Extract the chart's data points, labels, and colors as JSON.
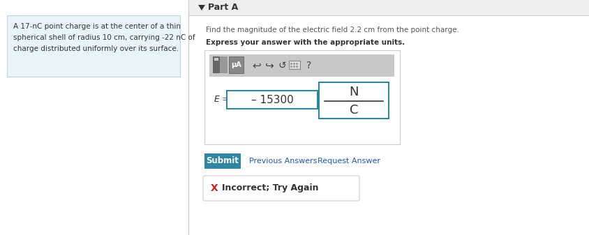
{
  "bg_color": "#ffffff",
  "left_panel_bg": "#e8f4f8",
  "left_panel_border": "#b8d8e8",
  "right_panel_bg": "#f0f0f0",
  "left_text_line1": "A 17-nC point charge is at the center of a thin",
  "left_text_line2": "spherical shell of radius 10 cm, carrying -22 nC of",
  "left_text_line3": "charge distributed uniformly over its surface.",
  "part_label": "Part A",
  "question_line1": "Find the magnitude of the electric field 2.2 cm from the point charge.",
  "question_line2": "Express your answer with the appropriate units.",
  "answer_value": "– 15300",
  "unit_numerator": "N",
  "unit_denominator": "C",
  "submit_bg": "#2e86a0",
  "submit_text": "Submit",
  "submit_text_color": "#ffffff",
  "prev_answers_text": "Previous Answers",
  "request_answer_text": "Request Answer",
  "link_color": "#2255bb",
  "incorrect_text": "Incorrect; Try Again",
  "incorrect_box_bg": "#ffffff",
  "incorrect_box_border": "#cccccc",
  "x_mark": "X",
  "x_color": "#cc2222",
  "toolbar_bg": "#c8c8c8",
  "icon_bg": "#777777",
  "icon_bg2": "#888888",
  "input_border": "#2e86a0",
  "unit_box_border": "#2e86a0",
  "divider_color": "#cccccc",
  "text_color": "#333333",
  "question_color": "#555555",
  "part_header_bg": "#eeeeee",
  "outer_box_border": "#cccccc",
  "outer_box_bg": "#ffffff"
}
